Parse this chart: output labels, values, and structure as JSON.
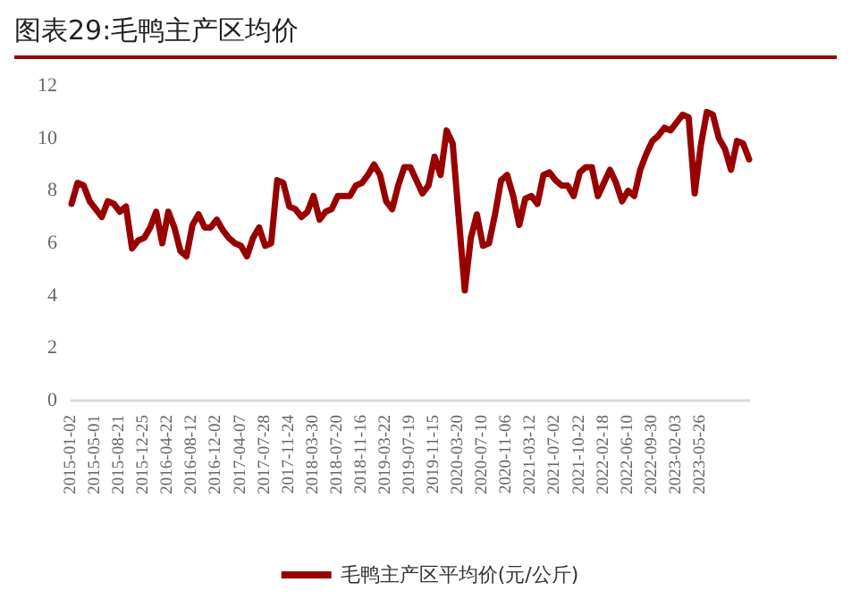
{
  "chart_data": {
    "type": "line",
    "title": "图表29:毛鸭主产区均价",
    "categories": [
      "2015-01-02",
      null,
      null,
      null,
      "2015-05-01",
      null,
      null,
      null,
      "2015-08-21",
      null,
      null,
      null,
      "2015-12-25",
      null,
      null,
      null,
      "2016-04-22",
      null,
      null,
      null,
      "2016-08-12",
      null,
      null,
      null,
      "2016-12-02",
      null,
      null,
      null,
      "2017-04-07",
      null,
      null,
      null,
      "2017-07-28",
      null,
      null,
      null,
      "2017-11-24",
      null,
      null,
      null,
      "2018-03-30",
      null,
      null,
      null,
      "2018-07-20",
      null,
      null,
      null,
      "2018-11-16",
      null,
      null,
      null,
      "2019-03-22",
      null,
      null,
      null,
      "2019-07-19",
      null,
      null,
      null,
      "2019-11-15",
      null,
      null,
      null,
      "2020-03-20",
      null,
      null,
      null,
      "2020-07-10",
      null,
      null,
      null,
      "2020-11-06",
      null,
      null,
      null,
      "2021-03-12",
      null,
      null,
      null,
      "2021-07-02",
      null,
      null,
      null,
      "2021-10-22",
      null,
      null,
      null,
      "2022-02-18",
      null,
      null,
      null,
      "2022-06-10",
      null,
      null,
      null,
      "2022-09-30",
      null,
      null,
      null,
      "2023-02-03",
      null,
      null,
      null,
      "2023-05-26",
      null,
      null,
      null,
      null,
      null,
      null,
      null,
      null
    ],
    "series": [
      {
        "name": "毛鸭主产区平均价(元/公斤)",
        "color": "#990000",
        "values": [
          7.5,
          8.3,
          8.2,
          7.6,
          7.3,
          7.0,
          7.6,
          7.5,
          7.2,
          7.4,
          5.8,
          6.1,
          6.2,
          6.6,
          7.2,
          6.0,
          7.2,
          6.6,
          5.7,
          5.5,
          6.7,
          7.1,
          6.6,
          6.6,
          6.9,
          6.5,
          6.2,
          6.0,
          5.9,
          5.5,
          6.2,
          6.6,
          5.9,
          6.0,
          8.4,
          8.3,
          7.4,
          7.3,
          7.0,
          7.2,
          7.8,
          6.9,
          7.2,
          7.3,
          7.8,
          7.8,
          7.8,
          8.2,
          8.3,
          8.6,
          9.0,
          8.6,
          7.6,
          7.3,
          8.2,
          8.9,
          8.9,
          8.4,
          7.9,
          8.2,
          9.3,
          8.6,
          10.3,
          9.8,
          7.0,
          4.2,
          6.2,
          7.1,
          5.9,
          6.0,
          7.1,
          8.4,
          8.6,
          7.8,
          6.7,
          7.7,
          7.8,
          7.5,
          8.6,
          8.7,
          8.4,
          8.2,
          8.2,
          7.8,
          8.7,
          8.9,
          8.9,
          7.8,
          8.3,
          8.8,
          8.3,
          7.6,
          8.0,
          7.8,
          8.8,
          9.4,
          9.9,
          10.1,
          10.4,
          10.3,
          10.6,
          10.9,
          10.8,
          7.9,
          9.7,
          11.0,
          10.9,
          10.0,
          9.6,
          8.8,
          9.9,
          9.8,
          9.2
        ]
      }
    ],
    "ylim": [
      0,
      12
    ],
    "yticks": [
      0,
      2,
      4,
      6,
      8,
      10,
      12
    ],
    "grid": false,
    "legend": "bottom",
    "marker": "none",
    "line_style": "solid"
  }
}
